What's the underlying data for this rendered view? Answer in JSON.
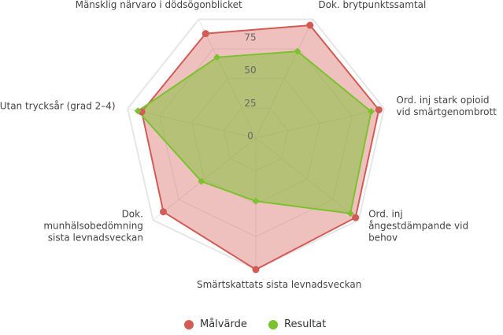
{
  "chart_data": {
    "type": "radar",
    "categories": [
      "Dok. brytpunktssamtal",
      "Ord. inj stark opioid vid smärtgenombrott",
      "Ord. inj ångestdämpande vid behov",
      "Smärtskattats sista levnadsveckan",
      "Dok. munhälsobedömning sista levnadsveckan",
      "Utan trycksår (grad 2–4)",
      "Mänsklig närvaro i dödsögonblicket"
    ],
    "series": [
      {
        "name": "Målvärde",
        "color": "#d35b55",
        "values": [
          95,
          96,
          97,
          100,
          90,
          89,
          88
        ]
      },
      {
        "name": "Resultat",
        "color": "#7cc22e",
        "values": [
          73,
          90,
          92,
          48,
          53,
          92,
          68
        ]
      }
    ],
    "ylim": [
      0,
      100
    ],
    "yticks": [
      0,
      25,
      50,
      75
    ],
    "grid": true,
    "legend": "bottom"
  }
}
